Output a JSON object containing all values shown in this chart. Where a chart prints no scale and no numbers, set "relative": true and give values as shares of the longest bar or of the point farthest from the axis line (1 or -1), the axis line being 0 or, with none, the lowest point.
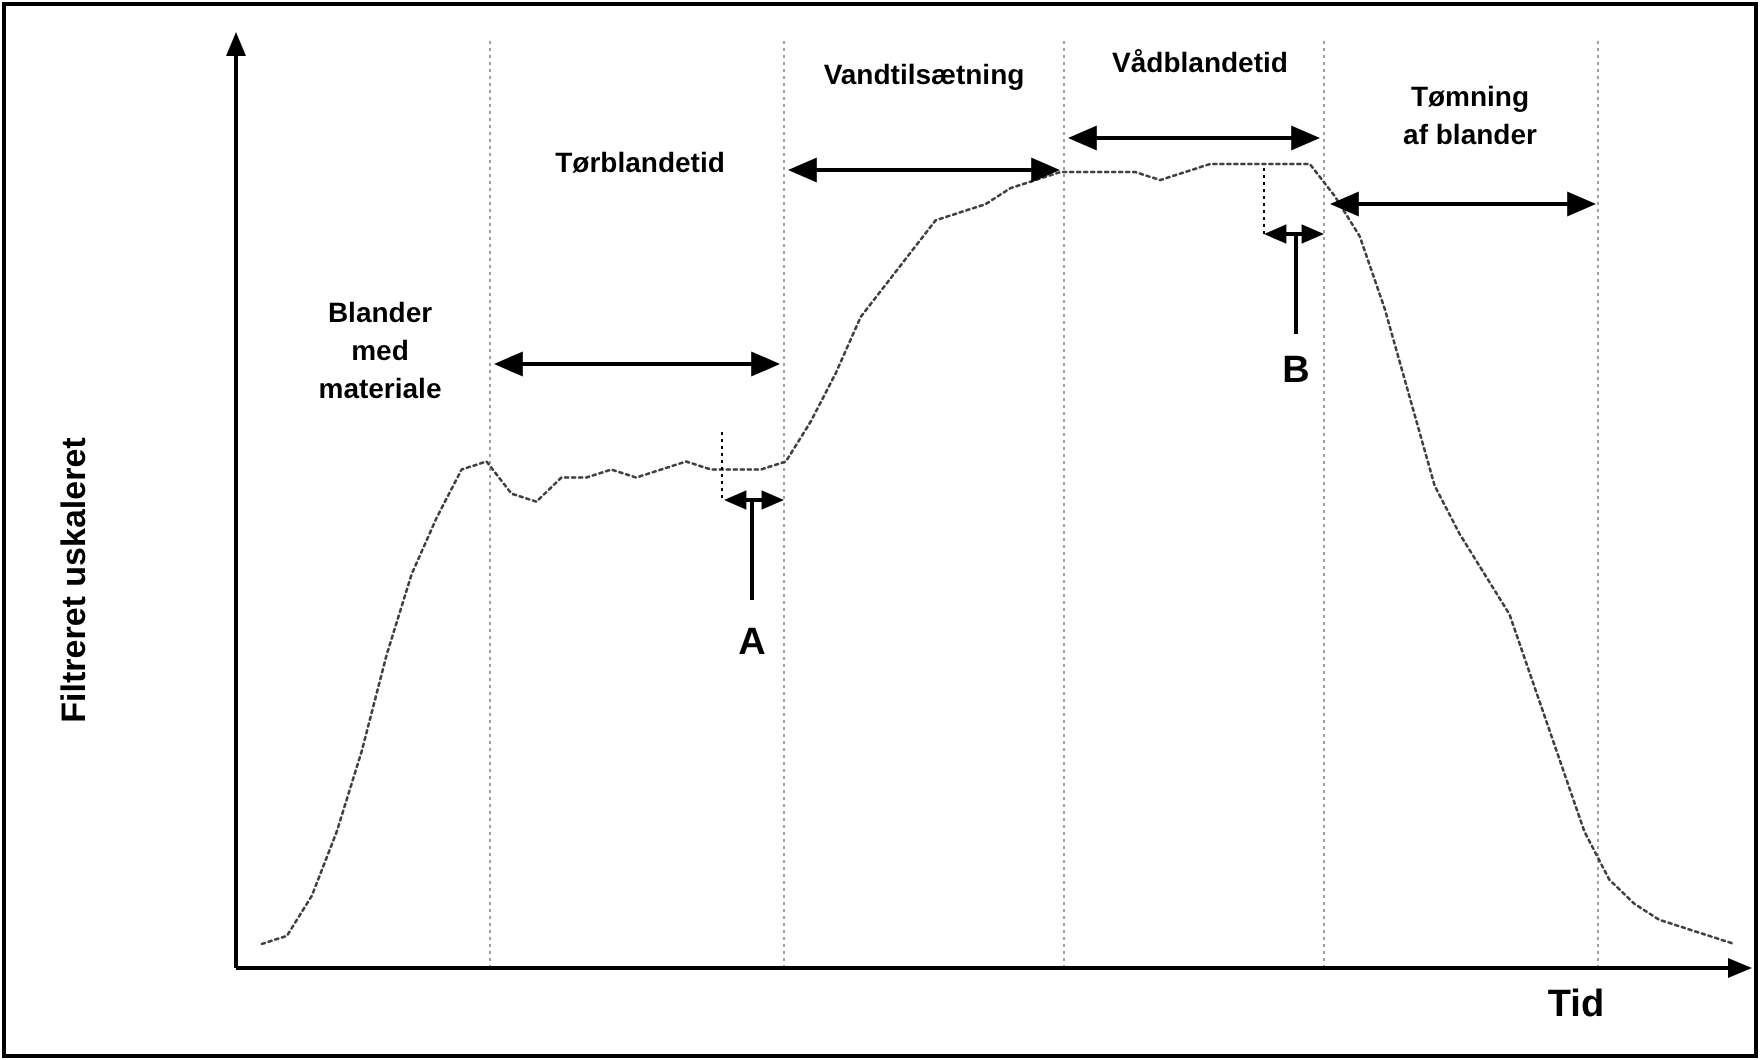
{
  "chart_data": {
    "type": "line",
    "relative": true,
    "ylabel": "Filtreret uskaleret",
    "xlabel": "Tid",
    "line_style": "dotted",
    "grid": "x",
    "categories": [
      null,
      null,
      null,
      null,
      null,
      null,
      null,
      null,
      null,
      null,
      null,
      null,
      null,
      null,
      null,
      null,
      null,
      null,
      null,
      null,
      null,
      null,
      null,
      null,
      null,
      null,
      null,
      null,
      null,
      null,
      null,
      null,
      null,
      null,
      null,
      null,
      null,
      null,
      null,
      null,
      null,
      null,
      null,
      null,
      null,
      null,
      null,
      null,
      null,
      null,
      null,
      null,
      null,
      null,
      null,
      null,
      null,
      null,
      null,
      null
    ],
    "series": [
      {
        "color": "#404040",
        "values": [
          0.03,
          0.04,
          0.09,
          0.17,
          0.27,
          0.39,
          0.49,
          0.56,
          0.62,
          0.63,
          0.59,
          0.58,
          0.61,
          0.61,
          0.62,
          0.61,
          0.62,
          0.63,
          0.62,
          0.62,
          0.62,
          0.63,
          0.68,
          0.74,
          0.81,
          0.85,
          0.89,
          0.93,
          0.94,
          0.95,
          0.97,
          0.98,
          0.99,
          0.99,
          0.99,
          0.99,
          0.98,
          0.99,
          1,
          1,
          1,
          1,
          1,
          0.96,
          0.91,
          0.82,
          0.71,
          0.6,
          0.54,
          0.49,
          0.44,
          0.35,
          0.26,
          0.17,
          0.11,
          0.08,
          0.06,
          0.05,
          0.04,
          0.03
        ]
      }
    ],
    "annotations": [
      "Blander\nmed\nmateriale",
      "Tørblandetid",
      "Vandtilsætning",
      "Vådblandetid",
      "Tømning\naf blander",
      "A",
      "B"
    ]
  }
}
